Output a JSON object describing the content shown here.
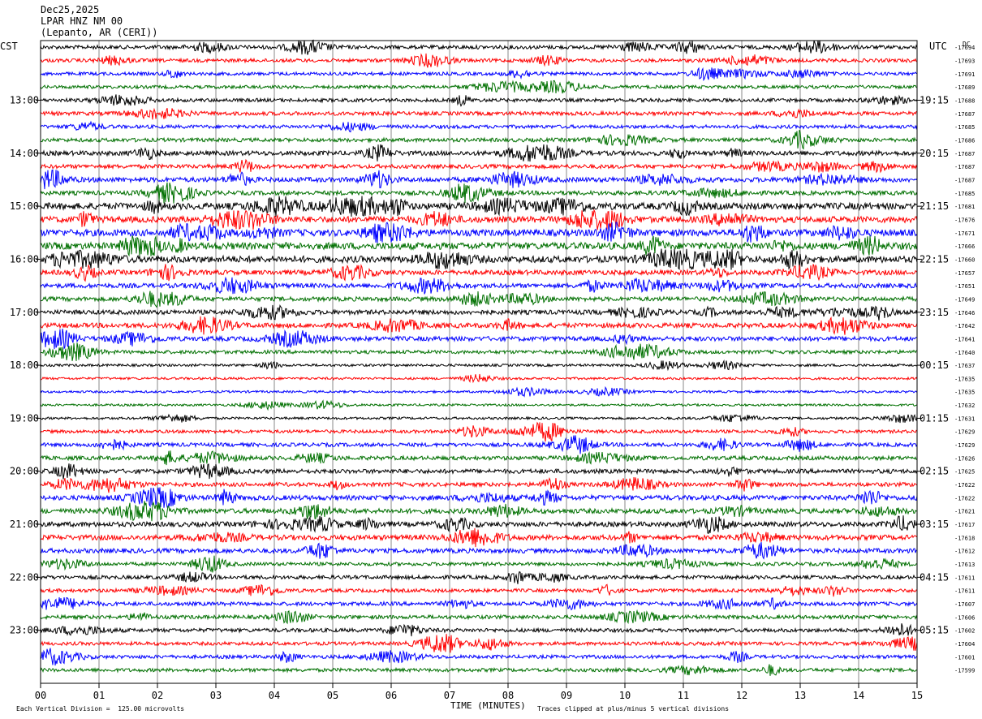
{
  "header": {
    "date": "Dec25,2025",
    "station": "LPAR HNZ NM 00",
    "location": "(Lepanto, AR (CERI))",
    "left_tz": "CST",
    "right_tz": "UTC",
    "right_corner": "DC"
  },
  "footer": {
    "xlabel": "TIME (MINUTES)",
    "scale_note": "Each Vertical Division =  125.00 microvolts",
    "clip_note": "Traces clipped at plus/minus 5 vertical divisions"
  },
  "chart_data": {
    "type": "line",
    "title": "LPAR HNZ NM 00",
    "xlabel": "TIME (MINUTES)",
    "xlim": [
      0,
      15
    ],
    "x_ticks": [
      "00",
      "01",
      "02",
      "03",
      "04",
      "05",
      "06",
      "07",
      "08",
      "09",
      "10",
      "11",
      "12",
      "13",
      "14",
      "15"
    ],
    "trace_colors": [
      "#000000",
      "#ff0000",
      "#0000ff",
      "#007000"
    ],
    "traces_per_hour": 4,
    "left_hour_labels": [
      "13:00",
      "14:00",
      "15:00",
      "16:00",
      "17:00",
      "18:00",
      "19:00",
      "20:00",
      "21:00",
      "22:00",
      "23:00"
    ],
    "right_hour_labels": [
      "19:15",
      "20:15",
      "21:15",
      "22:15",
      "23:15",
      "00:15",
      "01:15",
      "02:15",
      "03:15",
      "04:15",
      "05:15"
    ],
    "first_labeled_trace_index": 4,
    "trace_offsets": [
      -17694,
      -17693,
      -17691,
      -17689,
      -17688,
      -17687,
      -17685,
      -17686,
      -17687,
      -17687,
      -17687,
      -17685,
      -17681,
      -17676,
      -17671,
      -17666,
      -17660,
      -17657,
      -17651,
      -17649,
      -17646,
      -17642,
      -17641,
      -17640,
      -17637,
      -17635,
      -17635,
      -17632,
      -17631,
      -17629,
      -17629,
      -17626,
      -17625,
      -17622,
      -17622,
      -17621,
      -17617,
      -17618,
      -17612,
      -17613,
      -17611,
      -17611,
      -17607,
      -17606,
      -17602,
      -17604,
      -17601,
      -17599
    ],
    "trace_activity": [
      0.35,
      0.3,
      0.25,
      0.25,
      0.3,
      0.35,
      0.3,
      0.35,
      0.5,
      0.4,
      0.55,
      0.45,
      0.9,
      0.8,
      0.9,
      0.95,
      0.9,
      0.55,
      0.5,
      0.45,
      0.5,
      0.55,
      0.5,
      0.3,
      0.1,
      0.08,
      0.06,
      0.05,
      0.08,
      0.25,
      0.35,
      0.4,
      0.45,
      0.4,
      0.55,
      0.55,
      0.55,
      0.6,
      0.5,
      0.3,
      0.35,
      0.3,
      0.35,
      0.35,
      0.35,
      0.3,
      0.3,
      0.3
    ]
  }
}
